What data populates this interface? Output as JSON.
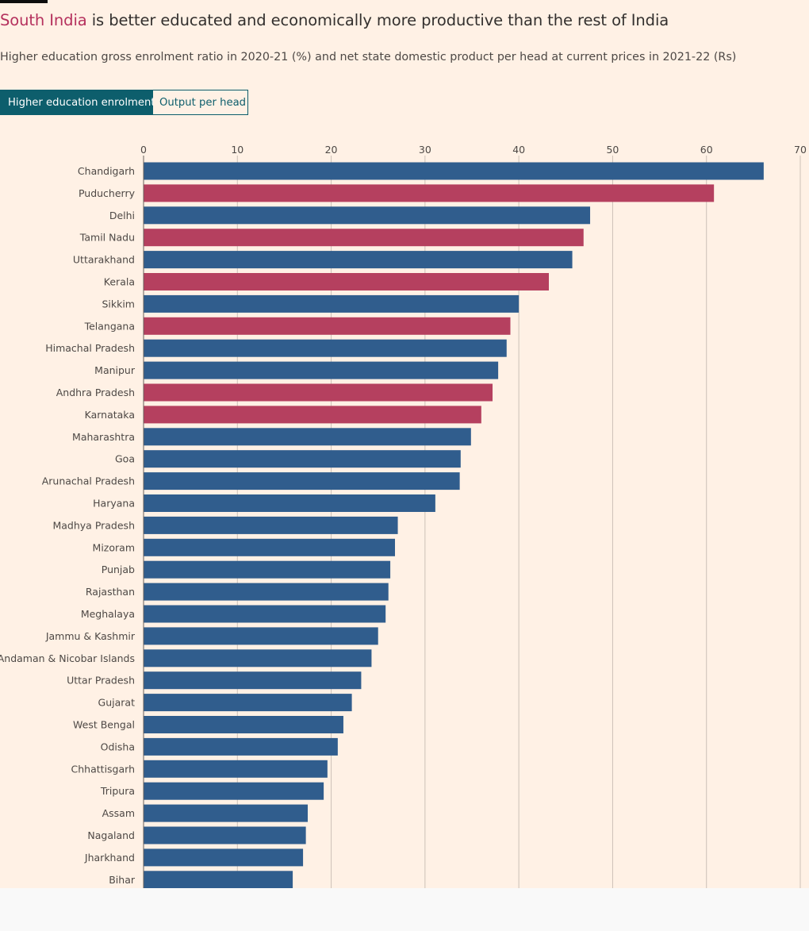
{
  "header": {
    "title_highlight": "South India",
    "title_rest": " is better educated and economically more productive than the rest of India",
    "subtitle": "Higher education gross enrolment ratio in 2020-21 (%) and net state domestic product per head at current prices in 2021-22 (Rs)"
  },
  "toggle": {
    "active_label": "Higher education enrolment",
    "inactive_label": "Output per head"
  },
  "colors": {
    "south": "#b5405f",
    "rest": "#305d8d",
    "highlight_text": "#b5315d",
    "toggle_active": "#0d5e6c"
  },
  "chart_data": {
    "type": "bar",
    "orientation": "horizontal",
    "title": "",
    "xlabel": "",
    "ylabel": "",
    "xlim": [
      0,
      70
    ],
    "xticks": [
      0,
      10,
      20,
      30,
      40,
      50,
      60,
      70
    ],
    "grid": true,
    "categories": [
      "Chandigarh",
      "Puducherry",
      "Delhi",
      "Tamil Nadu",
      "Uttarakhand",
      "Kerala",
      "Sikkim",
      "Telangana",
      "Himachal Pradesh",
      "Manipur",
      "Andhra Pradesh",
      "Karnataka",
      "Maharashtra",
      "Goa",
      "Arunachal Pradesh",
      "Haryana",
      "Madhya Pradesh",
      "Mizoram",
      "Punjab",
      "Rajasthan",
      "Meghalaya",
      "Jammu & Kashmir",
      "Andaman & Nicobar Islands",
      "Uttar Pradesh",
      "Gujarat",
      "West Bengal",
      "Odisha",
      "Chhattisgarh",
      "Tripura",
      "Assam",
      "Nagaland",
      "Jharkhand",
      "Bihar"
    ],
    "values": [
      66.1,
      60.8,
      47.6,
      46.9,
      45.7,
      43.2,
      40.0,
      39.1,
      38.7,
      37.8,
      37.2,
      36.0,
      34.9,
      33.8,
      33.7,
      31.1,
      27.1,
      26.8,
      26.3,
      26.1,
      25.8,
      25.0,
      24.3,
      23.2,
      22.2,
      21.3,
      20.7,
      19.6,
      19.2,
      17.5,
      17.3,
      17.0,
      15.9
    ],
    "south_india": [
      false,
      true,
      false,
      true,
      false,
      true,
      false,
      true,
      false,
      false,
      true,
      true,
      false,
      false,
      false,
      false,
      false,
      false,
      false,
      false,
      false,
      false,
      false,
      false,
      false,
      false,
      false,
      false,
      false,
      false,
      false,
      false,
      false
    ]
  }
}
